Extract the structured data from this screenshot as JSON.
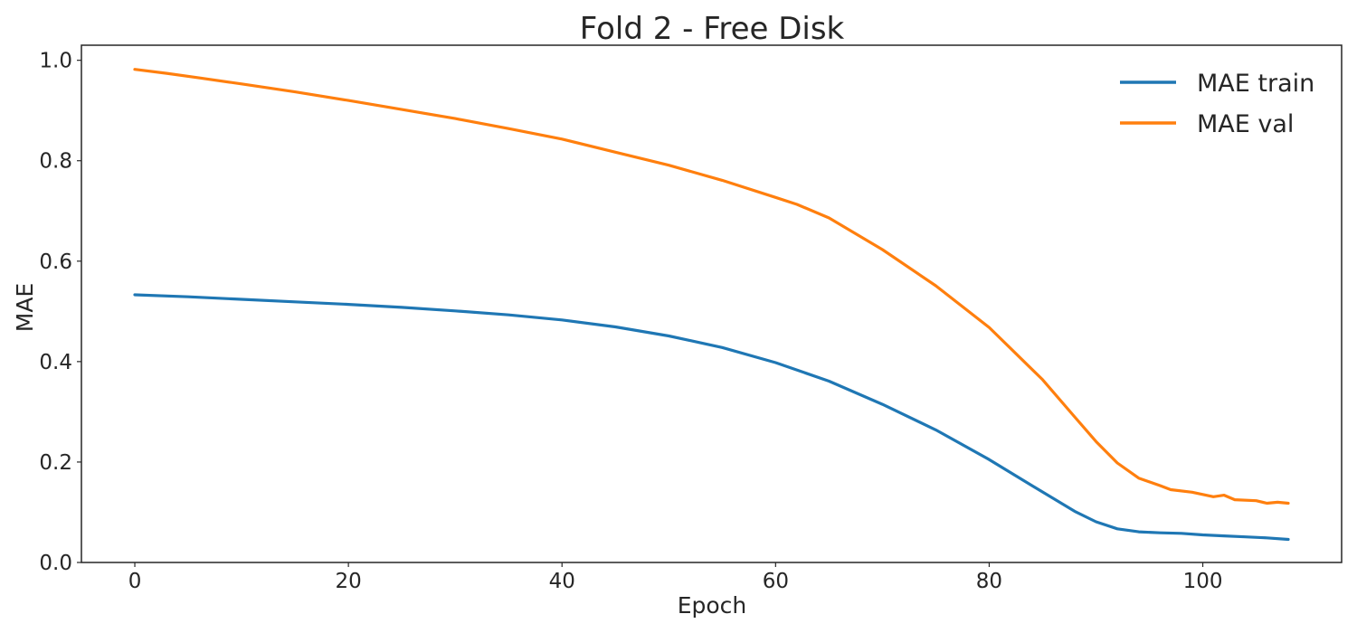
{
  "chart_data": {
    "type": "line",
    "title": "Fold 2 - Free Disk",
    "xlabel": "Epoch",
    "ylabel": "MAE",
    "xlim": [
      -5,
      113
    ],
    "ylim": [
      0,
      1.03
    ],
    "xticks": [
      0,
      20,
      40,
      60,
      80,
      100
    ],
    "yticks": [
      0.0,
      0.2,
      0.4,
      0.6,
      0.8,
      1.0
    ],
    "xtick_labels": [
      "0",
      "20",
      "40",
      "60",
      "80",
      "100"
    ],
    "ytick_labels": [
      "0.0",
      "0.2",
      "0.4",
      "0.6",
      "0.8",
      "1.0"
    ],
    "grid": false,
    "legend_position": "top-right",
    "series": [
      {
        "name": "MAE train",
        "color": "#1f77b4",
        "x": [
          0,
          5,
          10,
          15,
          20,
          25,
          30,
          35,
          40,
          45,
          50,
          55,
          60,
          65,
          70,
          75,
          80,
          84,
          88,
          90,
          92,
          94,
          96,
          98,
          100,
          102,
          104,
          106,
          108
        ],
        "y": [
          0.533,
          0.529,
          0.524,
          0.519,
          0.514,
          0.508,
          0.501,
          0.493,
          0.483,
          0.469,
          0.451,
          0.428,
          0.398,
          0.361,
          0.315,
          0.264,
          0.205,
          0.153,
          0.102,
          0.081,
          0.067,
          0.061,
          0.059,
          0.058,
          0.055,
          0.053,
          0.051,
          0.049,
          0.046
        ]
      },
      {
        "name": "MAE val",
        "color": "#ff7f0e",
        "x": [
          0,
          3,
          6,
          10,
          15,
          20,
          25,
          30,
          35,
          40,
          45,
          50,
          55,
          60,
          62,
          65,
          70,
          75,
          80,
          85,
          88,
          90,
          92,
          94,
          96,
          97,
          99,
          101,
          102,
          103,
          105,
          106,
          107,
          108
        ],
        "y": [
          0.982,
          0.974,
          0.965,
          0.953,
          0.937,
          0.92,
          0.902,
          0.884,
          0.864,
          0.843,
          0.817,
          0.791,
          0.761,
          0.727,
          0.713,
          0.686,
          0.623,
          0.551,
          0.468,
          0.364,
          0.29,
          0.241,
          0.198,
          0.168,
          0.153,
          0.145,
          0.14,
          0.131,
          0.134,
          0.125,
          0.123,
          0.118,
          0.12,
          0.118
        ]
      }
    ]
  }
}
